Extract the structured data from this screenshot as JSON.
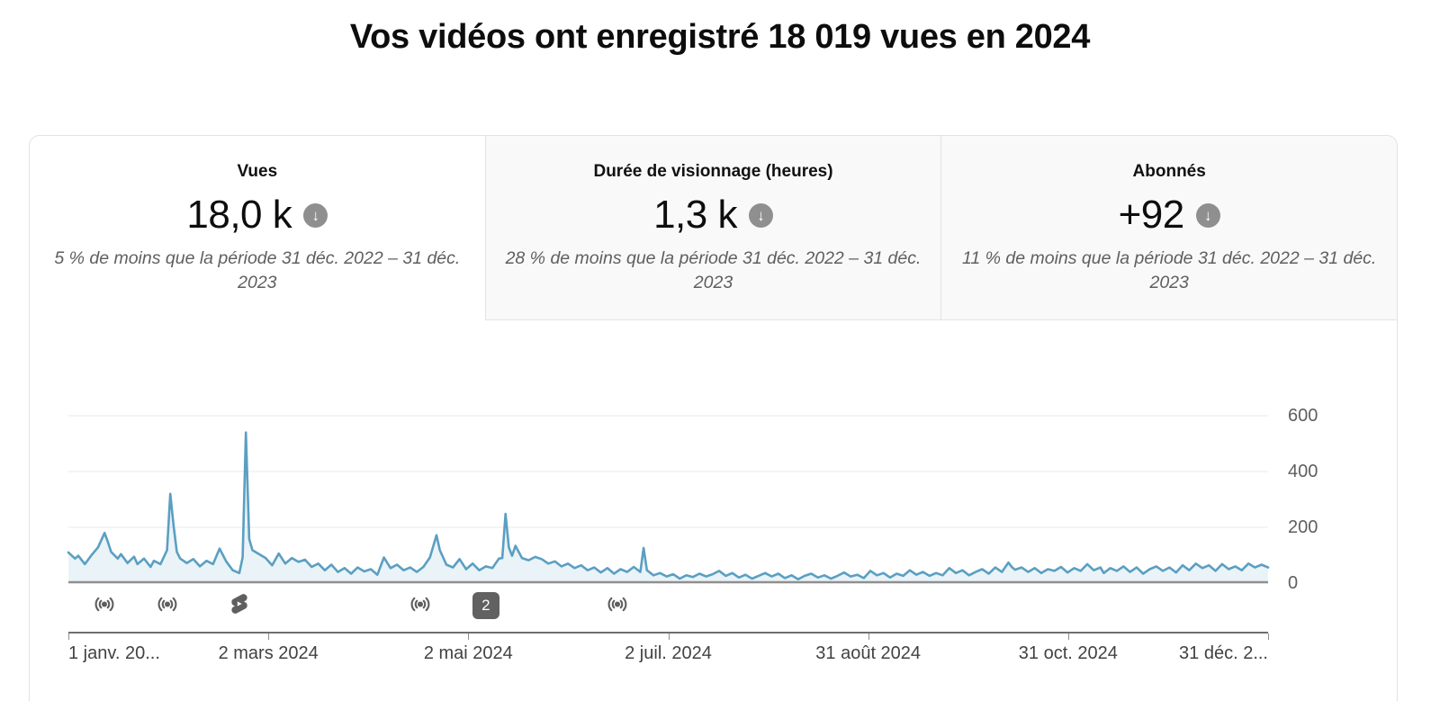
{
  "page": {
    "title": "Vos vidéos ont enregistré 18 019 vues en 2024"
  },
  "metrics": [
    {
      "id": "views",
      "label": "Vues",
      "value": "18,0 k",
      "trend": "down",
      "trend_icon": "arrow-down",
      "comparison": "5 % de moins que la période 31 déc. 2022 – 31 déc. 2023",
      "selected": true
    },
    {
      "id": "watch-time",
      "label": "Durée de visionnage (heures)",
      "value": "1,3 k",
      "trend": "down",
      "trend_icon": "arrow-down",
      "comparison": "28 % de moins que la période 31 déc. 2022 – 31 déc. 2023",
      "selected": false
    },
    {
      "id": "subscribers",
      "label": "Abonnés",
      "value": "+92",
      "trend": "down",
      "trend_icon": "arrow-down",
      "comparison": "11 % de moins que la période 31 déc. 2022 – 31 déc. 2023",
      "selected": false
    }
  ],
  "chart_data": {
    "type": "area",
    "title": "",
    "xlabel": "",
    "ylabel": "",
    "x_unit": "day_of_year_2024",
    "x_range_days": [
      0,
      365
    ],
    "ylim": [
      0,
      650
    ],
    "yticks": [
      0,
      200,
      400,
      600
    ],
    "y_axis_position": "right",
    "grid": "horizontal",
    "legend": "none",
    "line_color": "#5b9fc2",
    "fill_color": "rgba(96,160,195,0.13)",
    "baseline_color": "#8f8f8f",
    "xtick_labels": [
      "1 janv. 20...",
      "2 mars 2024",
      "2 mai 2024",
      "2 juil. 2024",
      "31 août 2024",
      "31 oct. 2024",
      "31 déc. 2..."
    ],
    "series": [
      {
        "name": "Vues",
        "points": [
          [
            0,
            110
          ],
          [
            2,
            88
          ],
          [
            3,
            98
          ],
          [
            5,
            68
          ],
          [
            7,
            100
          ],
          [
            9,
            128
          ],
          [
            11,
            180
          ],
          [
            12,
            148
          ],
          [
            13,
            112
          ],
          [
            15,
            88
          ],
          [
            16,
            104
          ],
          [
            18,
            72
          ],
          [
            20,
            95
          ],
          [
            21,
            68
          ],
          [
            23,
            88
          ],
          [
            25,
            58
          ],
          [
            26,
            80
          ],
          [
            28,
            68
          ],
          [
            30,
            118
          ],
          [
            31,
            320
          ],
          [
            32,
            205
          ],
          [
            33,
            112
          ],
          [
            34,
            88
          ],
          [
            36,
            72
          ],
          [
            38,
            86
          ],
          [
            40,
            60
          ],
          [
            42,
            80
          ],
          [
            44,
            68
          ],
          [
            46,
            124
          ],
          [
            48,
            78
          ],
          [
            50,
            46
          ],
          [
            52,
            36
          ],
          [
            53,
            92
          ],
          [
            54,
            540
          ],
          [
            55,
            158
          ],
          [
            56,
            118
          ],
          [
            58,
            104
          ],
          [
            60,
            90
          ],
          [
            62,
            64
          ],
          [
            64,
            106
          ],
          [
            66,
            70
          ],
          [
            68,
            90
          ],
          [
            70,
            76
          ],
          [
            72,
            84
          ],
          [
            74,
            58
          ],
          [
            76,
            70
          ],
          [
            78,
            46
          ],
          [
            80,
            66
          ],
          [
            82,
            40
          ],
          [
            84,
            54
          ],
          [
            86,
            34
          ],
          [
            88,
            56
          ],
          [
            90,
            42
          ],
          [
            92,
            50
          ],
          [
            94,
            30
          ],
          [
            96,
            92
          ],
          [
            98,
            54
          ],
          [
            100,
            66
          ],
          [
            102,
            46
          ],
          [
            104,
            56
          ],
          [
            106,
            40
          ],
          [
            108,
            58
          ],
          [
            110,
            92
          ],
          [
            112,
            172
          ],
          [
            113,
            118
          ],
          [
            115,
            66
          ],
          [
            117,
            56
          ],
          [
            119,
            86
          ],
          [
            121,
            50
          ],
          [
            123,
            70
          ],
          [
            125,
            46
          ],
          [
            127,
            60
          ],
          [
            129,
            54
          ],
          [
            131,
            88
          ],
          [
            132,
            90
          ],
          [
            133,
            248
          ],
          [
            134,
            128
          ],
          [
            135,
            98
          ],
          [
            136,
            134
          ],
          [
            138,
            90
          ],
          [
            140,
            82
          ],
          [
            142,
            94
          ],
          [
            144,
            86
          ],
          [
            146,
            70
          ],
          [
            148,
            78
          ],
          [
            150,
            60
          ],
          [
            152,
            70
          ],
          [
            154,
            54
          ],
          [
            156,
            64
          ],
          [
            158,
            46
          ],
          [
            160,
            56
          ],
          [
            162,
            38
          ],
          [
            164,
            54
          ],
          [
            166,
            34
          ],
          [
            168,
            50
          ],
          [
            170,
            40
          ],
          [
            172,
            58
          ],
          [
            174,
            40
          ],
          [
            175,
            126
          ],
          [
            176,
            46
          ],
          [
            178,
            28
          ],
          [
            180,
            36
          ],
          [
            182,
            24
          ],
          [
            184,
            32
          ],
          [
            186,
            16
          ],
          [
            188,
            28
          ],
          [
            190,
            22
          ],
          [
            192,
            34
          ],
          [
            194,
            24
          ],
          [
            196,
            32
          ],
          [
            198,
            44
          ],
          [
            200,
            26
          ],
          [
            202,
            36
          ],
          [
            204,
            20
          ],
          [
            206,
            30
          ],
          [
            208,
            16
          ],
          [
            210,
            26
          ],
          [
            212,
            36
          ],
          [
            214,
            24
          ],
          [
            216,
            34
          ],
          [
            218,
            18
          ],
          [
            220,
            28
          ],
          [
            222,
            14
          ],
          [
            224,
            26
          ],
          [
            226,
            34
          ],
          [
            228,
            20
          ],
          [
            230,
            28
          ],
          [
            232,
            16
          ],
          [
            234,
            26
          ],
          [
            236,
            38
          ],
          [
            238,
            24
          ],
          [
            240,
            30
          ],
          [
            242,
            18
          ],
          [
            244,
            44
          ],
          [
            246,
            28
          ],
          [
            248,
            36
          ],
          [
            250,
            20
          ],
          [
            252,
            34
          ],
          [
            254,
            26
          ],
          [
            256,
            46
          ],
          [
            258,
            30
          ],
          [
            260,
            40
          ],
          [
            262,
            26
          ],
          [
            264,
            36
          ],
          [
            266,
            28
          ],
          [
            268,
            54
          ],
          [
            270,
            36
          ],
          [
            272,
            46
          ],
          [
            274,
            28
          ],
          [
            276,
            40
          ],
          [
            278,
            50
          ],
          [
            280,
            34
          ],
          [
            282,
            56
          ],
          [
            284,
            40
          ],
          [
            286,
            74
          ],
          [
            287,
            58
          ],
          [
            288,
            48
          ],
          [
            290,
            56
          ],
          [
            292,
            40
          ],
          [
            294,
            54
          ],
          [
            296,
            36
          ],
          [
            298,
            50
          ],
          [
            300,
            44
          ],
          [
            302,
            58
          ],
          [
            304,
            38
          ],
          [
            306,
            54
          ],
          [
            308,
            44
          ],
          [
            310,
            68
          ],
          [
            312,
            46
          ],
          [
            314,
            56
          ],
          [
            315,
            36
          ],
          [
            317,
            54
          ],
          [
            319,
            44
          ],
          [
            321,
            60
          ],
          [
            323,
            40
          ],
          [
            325,
            56
          ],
          [
            327,
            34
          ],
          [
            329,
            50
          ],
          [
            331,
            60
          ],
          [
            333,
            44
          ],
          [
            335,
            56
          ],
          [
            337,
            38
          ],
          [
            339,
            64
          ],
          [
            341,
            46
          ],
          [
            343,
            70
          ],
          [
            345,
            54
          ],
          [
            347,
            64
          ],
          [
            349,
            44
          ],
          [
            351,
            68
          ],
          [
            353,
            50
          ],
          [
            355,
            60
          ],
          [
            357,
            46
          ],
          [
            359,
            70
          ],
          [
            361,
            56
          ],
          [
            363,
            66
          ],
          [
            365,
            56
          ]
        ]
      }
    ],
    "event_markers": [
      {
        "day": 11,
        "type": "live",
        "icon": "broadcast-icon"
      },
      {
        "day": 30,
        "type": "live",
        "icon": "broadcast-icon"
      },
      {
        "day": 52,
        "type": "shorts",
        "icon": "shorts-icon"
      },
      {
        "day": 107,
        "type": "live",
        "icon": "broadcast-icon"
      },
      {
        "day": 127,
        "type": "badge",
        "label": "2"
      },
      {
        "day": 167,
        "type": "live",
        "icon": "broadcast-icon"
      }
    ]
  }
}
